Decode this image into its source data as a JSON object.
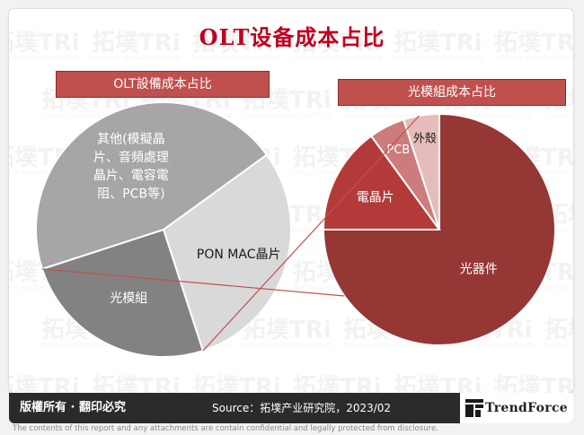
{
  "title": "OLT设备成本占比",
  "colors": {
    "title": "#c0001e",
    "banner": "#c0504d",
    "left_pie": [
      "#d9d9d9",
      "#828282",
      "#a6a6a6"
    ],
    "right_pie": [
      "#953735",
      "#b23b3a",
      "#cb7c7b",
      "#e6bcbb"
    ]
  },
  "chart_data": [
    {
      "type": "pie",
      "title": "OLT設備成本占比",
      "series": [
        {
          "label": "PON MAC晶片",
          "value": 30
        },
        {
          "label": "光模組",
          "value": 25
        },
        {
          "label": "其他(模擬晶片、音頻處理晶片、電容電阻、PCB等)",
          "value": 45
        }
      ],
      "slice_labels": [
        [
          "PON MAC晶片"
        ],
        [
          "光模組"
        ],
        [
          "其他(模擬晶",
          "片、音頻處理",
          "晶片、電容電",
          "阻、PCB等)"
        ]
      ]
    },
    {
      "type": "pie",
      "title": "光模組成本占比",
      "series": [
        {
          "label": "光器件",
          "value": 75
        },
        {
          "label": "電晶片",
          "value": 15
        },
        {
          "label": "PCB",
          "value": 5
        },
        {
          "label": "外殼",
          "value": 5
        }
      ],
      "slice_labels": [
        [
          "光器件"
        ],
        [
          "電晶片"
        ],
        [
          "PCB"
        ],
        [
          "外殼"
        ]
      ]
    }
  ],
  "footer": {
    "rights": "版權所有 · 翻印必究",
    "source": "Source：拓墣产业研究院，2023/02",
    "logo": "TrendForce",
    "disclaimer": "The contents of this report and any attachments are contain confidential and legally protected from disclosure."
  },
  "watermark": {
    "text": "拓墣TRi",
    "subtext": "TOPOLOGY RESEARCH INSTITUTE"
  }
}
